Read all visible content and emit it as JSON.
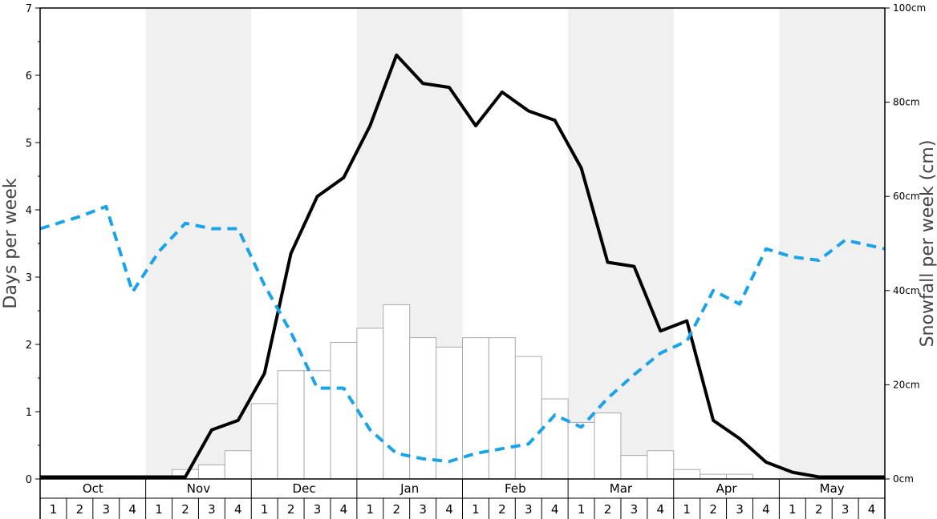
{
  "chart_data": {
    "type": "bar+line",
    "title": "",
    "ylabel_left": "Days per week",
    "ylabel_right": "Snowfall per week (cm)",
    "ylim_left": [
      0,
      7
    ],
    "ylim_right": [
      0,
      100
    ],
    "left_ticks": [
      "0",
      "1",
      "2",
      "3",
      "4",
      "5",
      "6",
      "7"
    ],
    "right_ticks": [
      "0cm",
      "20cm",
      "40cm",
      "60cm",
      "80cm",
      "100cm"
    ],
    "months": [
      "Oct",
      "Nov",
      "Dec",
      "Jan",
      "Feb",
      "Mar",
      "Apr",
      "May"
    ],
    "weeks": [
      "1",
      "2",
      "3",
      "4"
    ],
    "colors": {
      "shade": "#f0f0f0",
      "bar_fill": "#ffffff",
      "bar_stroke": "#aaaaaa",
      "snow_line": "#000000",
      "dashed_line": "#1aa3e8",
      "frame": "#000000"
    },
    "series": [
      {
        "kind": "bar",
        "axis": "right",
        "values": [
          0,
          0,
          0,
          0,
          0,
          2,
          3,
          6,
          16,
          23,
          23,
          29,
          32,
          37,
          30,
          28,
          30,
          30,
          26,
          17,
          12,
          14,
          5,
          6,
          2,
          1,
          1,
          0,
          0,
          0,
          0,
          0
        ]
      },
      {
        "kind": "line",
        "style": "solid",
        "axis": "left",
        "values": [
          0.03,
          0.03,
          0.03,
          0.03,
          0.03,
          0.03,
          0.73,
          0.87,
          1.57,
          3.35,
          4.2,
          4.48,
          5.25,
          6.3,
          5.88,
          5.82,
          5.25,
          5.75,
          5.47,
          5.33,
          4.62,
          3.22,
          3.16,
          2.2,
          2.35,
          0.87,
          0.6,
          0.25,
          0.1,
          0.03,
          0.03,
          0.03
        ]
      },
      {
        "kind": "line",
        "style": "dashed",
        "axis": "left",
        "values": [
          3.72,
          3.9,
          4.05,
          2.78,
          3.38,
          3.8,
          3.72,
          3.72,
          2.88,
          2.18,
          1.35,
          1.35,
          0.73,
          0.38,
          0.3,
          0.26,
          0.38,
          0.45,
          0.52,
          0.95,
          0.77,
          1.2,
          1.55,
          1.87,
          2.05,
          2.8,
          2.6,
          3.42,
          3.3,
          3.25,
          3.55,
          3.42
        ]
      }
    ]
  }
}
